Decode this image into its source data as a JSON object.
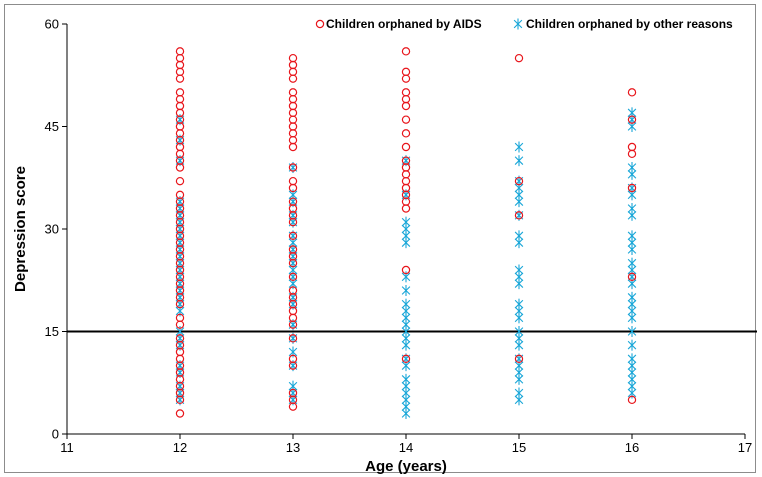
{
  "chart_data": {
    "type": "scatter",
    "title": "",
    "xlabel": "Age (years)",
    "ylabel": "Depression score",
    "xlim": [
      11,
      17
    ],
    "ylim": [
      0,
      60
    ],
    "x_ticks": [
      "11",
      "12",
      "13",
      "14",
      "15",
      "16",
      "17"
    ],
    "y_ticks": [
      "0",
      "15",
      "30",
      "45",
      "60"
    ],
    "grid": false,
    "reference_line_y": 15,
    "legend_position": "top-right",
    "series": [
      {
        "name": "Children orphaned by AIDS",
        "marker": "circle",
        "color": "#e8151b",
        "points": [
          [
            12,
            3
          ],
          [
            12,
            5
          ],
          [
            12,
            6
          ],
          [
            12,
            7
          ],
          [
            12,
            8
          ],
          [
            12,
            9
          ],
          [
            12,
            10
          ],
          [
            12,
            11
          ],
          [
            12,
            12
          ],
          [
            12,
            13
          ],
          [
            12,
            14
          ],
          [
            12,
            16
          ],
          [
            12,
            17
          ],
          [
            12,
            19
          ],
          [
            12,
            20
          ],
          [
            12,
            21
          ],
          [
            12,
            22
          ],
          [
            12,
            23
          ],
          [
            12,
            24
          ],
          [
            12,
            25
          ],
          [
            12,
            26
          ],
          [
            12,
            27
          ],
          [
            12,
            28
          ],
          [
            12,
            29
          ],
          [
            12,
            30
          ],
          [
            12,
            31
          ],
          [
            12,
            32
          ],
          [
            12,
            33
          ],
          [
            12,
            34
          ],
          [
            12,
            35
          ],
          [
            12,
            37
          ],
          [
            12,
            39
          ],
          [
            12,
            40
          ],
          [
            12,
            41
          ],
          [
            12,
            42
          ],
          [
            12,
            43
          ],
          [
            12,
            44
          ],
          [
            12,
            45
          ],
          [
            12,
            46
          ],
          [
            12,
            47
          ],
          [
            12,
            48
          ],
          [
            12,
            49
          ],
          [
            12,
            50
          ],
          [
            12,
            52
          ],
          [
            12,
            53
          ],
          [
            12,
            54
          ],
          [
            12,
            55
          ],
          [
            12,
            56
          ],
          [
            13,
            4
          ],
          [
            13,
            5
          ],
          [
            13,
            6
          ],
          [
            13,
            10
          ],
          [
            13,
            11
          ],
          [
            13,
            14
          ],
          [
            13,
            16
          ],
          [
            13,
            17
          ],
          [
            13,
            18
          ],
          [
            13,
            19
          ],
          [
            13,
            20
          ],
          [
            13,
            21
          ],
          [
            13,
            23
          ],
          [
            13,
            25
          ],
          [
            13,
            26
          ],
          [
            13,
            27
          ],
          [
            13,
            29
          ],
          [
            13,
            31
          ],
          [
            13,
            32
          ],
          [
            13,
            33
          ],
          [
            13,
            34
          ],
          [
            13,
            36
          ],
          [
            13,
            37
          ],
          [
            13,
            39
          ],
          [
            13,
            42
          ],
          [
            13,
            43
          ],
          [
            13,
            44
          ],
          [
            13,
            45
          ],
          [
            13,
            46
          ],
          [
            13,
            47
          ],
          [
            13,
            48
          ],
          [
            13,
            49
          ],
          [
            13,
            50
          ],
          [
            13,
            52
          ],
          [
            13,
            53
          ],
          [
            13,
            54
          ],
          [
            13,
            55
          ],
          [
            14,
            11
          ],
          [
            14,
            24
          ],
          [
            14,
            33
          ],
          [
            14,
            34
          ],
          [
            14,
            35
          ],
          [
            14,
            36
          ],
          [
            14,
            37
          ],
          [
            14,
            38
          ],
          [
            14,
            39
          ],
          [
            14,
            40
          ],
          [
            14,
            42
          ],
          [
            14,
            44
          ],
          [
            14,
            46
          ],
          [
            14,
            48
          ],
          [
            14,
            49
          ],
          [
            14,
            50
          ],
          [
            14,
            52
          ],
          [
            14,
            53
          ],
          [
            14,
            56
          ],
          [
            15,
            11
          ],
          [
            15,
            32
          ],
          [
            15,
            37
          ],
          [
            15,
            55
          ],
          [
            16,
            5
          ],
          [
            16,
            23
          ],
          [
            16,
            36
          ],
          [
            16,
            41
          ],
          [
            16,
            42
          ],
          [
            16,
            46
          ],
          [
            16,
            50
          ]
        ]
      },
      {
        "name": "Children orphaned by other reasons",
        "marker": "asterisk",
        "color": "#1aa7d8",
        "points": [
          [
            12,
            5
          ],
          [
            12,
            6
          ],
          [
            12,
            7
          ],
          [
            12,
            9
          ],
          [
            12,
            10
          ],
          [
            12,
            13
          ],
          [
            12,
            14
          ],
          [
            12,
            15
          ],
          [
            12,
            18
          ],
          [
            12,
            19
          ],
          [
            12,
            20
          ],
          [
            12,
            21
          ],
          [
            12,
            22
          ],
          [
            12,
            23
          ],
          [
            12,
            24
          ],
          [
            12,
            25
          ],
          [
            12,
            26
          ],
          [
            12,
            27
          ],
          [
            12,
            28
          ],
          [
            12,
            29
          ],
          [
            12,
            30
          ],
          [
            12,
            31
          ],
          [
            12,
            32
          ],
          [
            12,
            33
          ],
          [
            12,
            34
          ],
          [
            12,
            40
          ],
          [
            12,
            43
          ],
          [
            12,
            46
          ],
          [
            13,
            5
          ],
          [
            13,
            6
          ],
          [
            13,
            7
          ],
          [
            13,
            10
          ],
          [
            13,
            12
          ],
          [
            13,
            14
          ],
          [
            13,
            16
          ],
          [
            13,
            19
          ],
          [
            13,
            20
          ],
          [
            13,
            22
          ],
          [
            13,
            23
          ],
          [
            13,
            24
          ],
          [
            13,
            25
          ],
          [
            13,
            26
          ],
          [
            13,
            27
          ],
          [
            13,
            28
          ],
          [
            13,
            29
          ],
          [
            13,
            31
          ],
          [
            13,
            32
          ],
          [
            13,
            34
          ],
          [
            13,
            35
          ],
          [
            13,
            39
          ],
          [
            14,
            3
          ],
          [
            14,
            4
          ],
          [
            14,
            5
          ],
          [
            14,
            6
          ],
          [
            14,
            7
          ],
          [
            14,
            8
          ],
          [
            14,
            10
          ],
          [
            14,
            11
          ],
          [
            14,
            13
          ],
          [
            14,
            14
          ],
          [
            14,
            15
          ],
          [
            14,
            16
          ],
          [
            14,
            17
          ],
          [
            14,
            18
          ],
          [
            14,
            19
          ],
          [
            14,
            21
          ],
          [
            14,
            23
          ],
          [
            14,
            28
          ],
          [
            14,
            29
          ],
          [
            14,
            30
          ],
          [
            14,
            31
          ],
          [
            14,
            35
          ],
          [
            14,
            40
          ],
          [
            15,
            5
          ],
          [
            15,
            6
          ],
          [
            15,
            8
          ],
          [
            15,
            9
          ],
          [
            15,
            10
          ],
          [
            15,
            11
          ],
          [
            15,
            13
          ],
          [
            15,
            14
          ],
          [
            15,
            15
          ],
          [
            15,
            17
          ],
          [
            15,
            18
          ],
          [
            15,
            19
          ],
          [
            15,
            22
          ],
          [
            15,
            23
          ],
          [
            15,
            24
          ],
          [
            15,
            28
          ],
          [
            15,
            29
          ],
          [
            15,
            32
          ],
          [
            15,
            34
          ],
          [
            15,
            35
          ],
          [
            15,
            36
          ],
          [
            15,
            37
          ],
          [
            15,
            40
          ],
          [
            15,
            42
          ],
          [
            16,
            6
          ],
          [
            16,
            7
          ],
          [
            16,
            8
          ],
          [
            16,
            9
          ],
          [
            16,
            10
          ],
          [
            16,
            11
          ],
          [
            16,
            13
          ],
          [
            16,
            15
          ],
          [
            16,
            17
          ],
          [
            16,
            18
          ],
          [
            16,
            19
          ],
          [
            16,
            20
          ],
          [
            16,
            22
          ],
          [
            16,
            23
          ],
          [
            16,
            24
          ],
          [
            16,
            25
          ],
          [
            16,
            27
          ],
          [
            16,
            28
          ],
          [
            16,
            29
          ],
          [
            16,
            32
          ],
          [
            16,
            33
          ],
          [
            16,
            35
          ],
          [
            16,
            36
          ],
          [
            16,
            38
          ],
          [
            16,
            39
          ],
          [
            16,
            45
          ],
          [
            16,
            46
          ],
          [
            16,
            47
          ]
        ]
      }
    ]
  }
}
